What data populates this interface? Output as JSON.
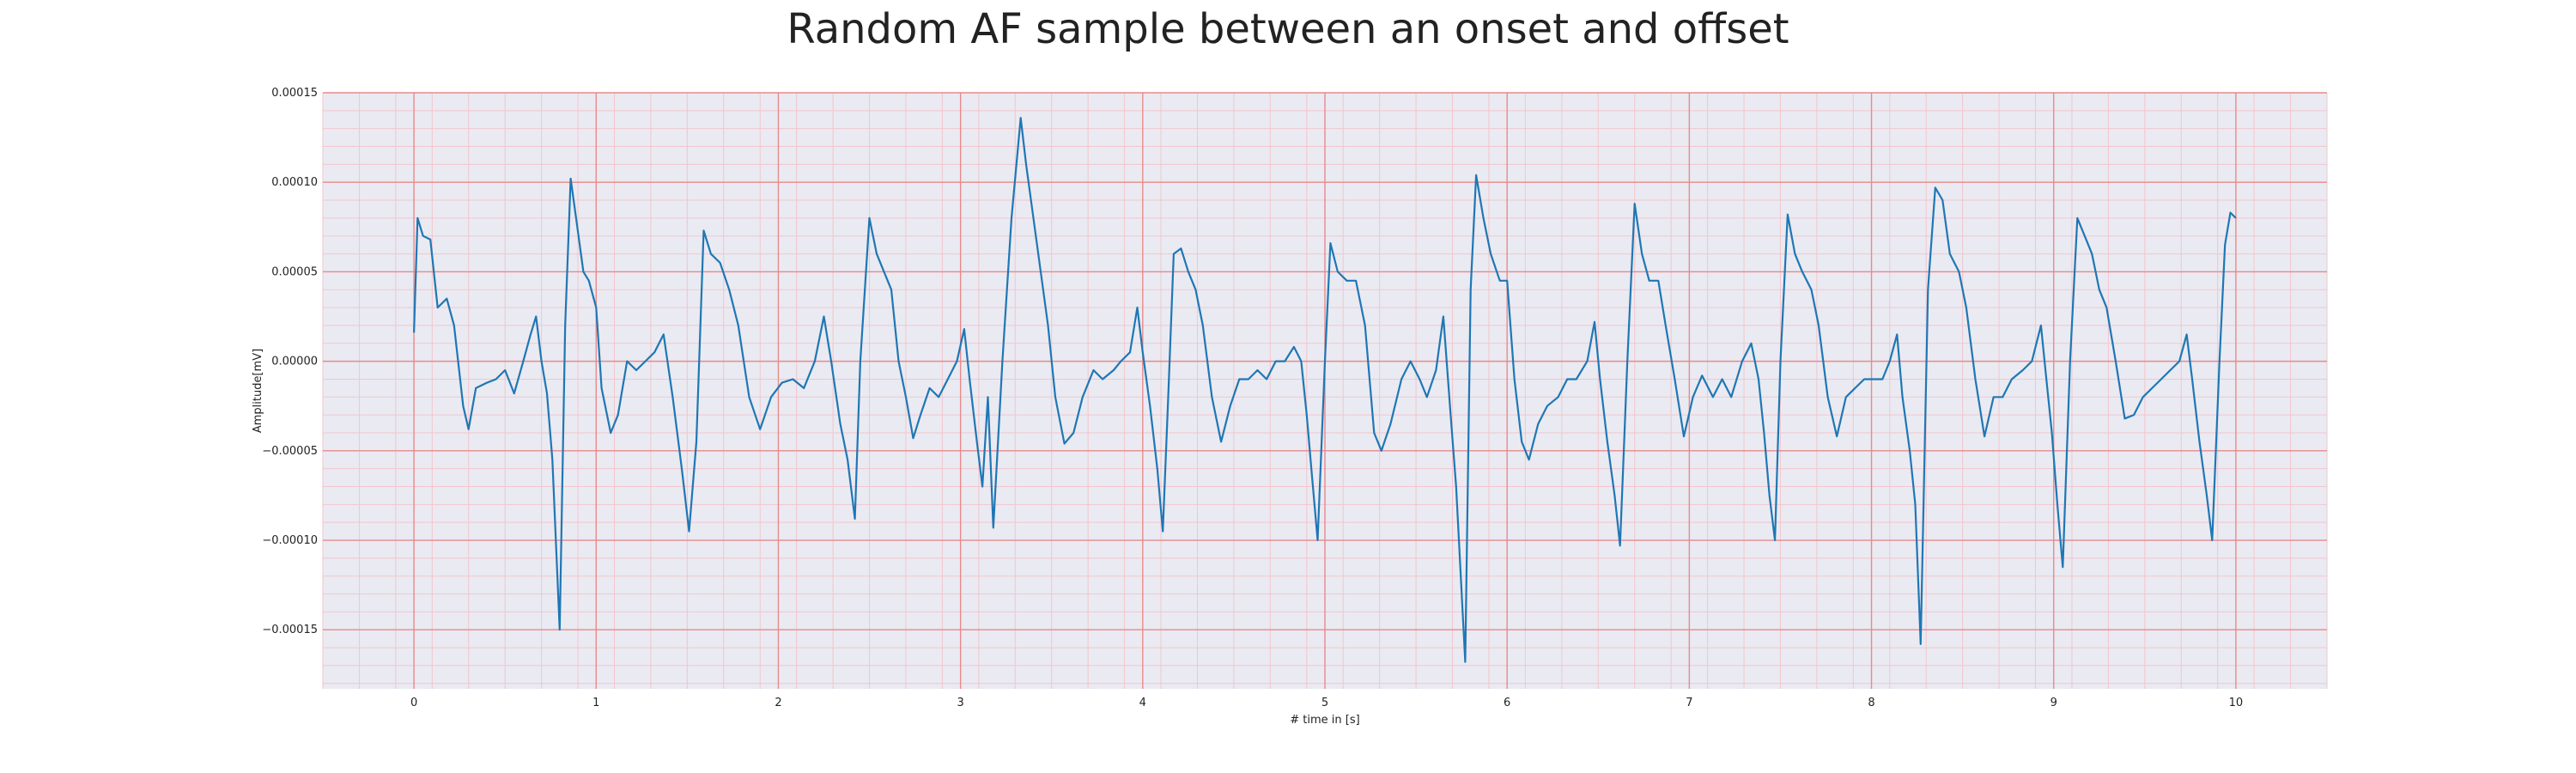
{
  "chart_data": {
    "type": "line",
    "title": "Random AF sample between an onset and offset",
    "xlabel": "# time in [s]",
    "ylabel": "Amplitude[mV]",
    "xlim": [
      -0.5,
      10.5
    ],
    "ylim": [
      -0.000183,
      0.00015
    ],
    "x_ticks": [
      0,
      1,
      2,
      3,
      4,
      5,
      6,
      7,
      8,
      9,
      10
    ],
    "x_tick_labels": [
      "0",
      "1",
      "2",
      "3",
      "4",
      "5",
      "6",
      "7",
      "8",
      "9",
      "10"
    ],
    "y_ticks": [
      -0.00015,
      -0.0001,
      -5e-05,
      0,
      5e-05,
      0.0001,
      0.00015
    ],
    "y_tick_labels": [
      "−0.00015",
      "−0.00010",
      "−0.00005",
      "0.00000",
      "0.00005",
      "0.00010",
      "0.00015"
    ],
    "grid": true,
    "colors": {
      "line": "#1f77b4",
      "major_grid": "#e88a8a",
      "minor_grid": "#f2c6cc",
      "plot_bg": "#eaeaf2"
    },
    "series": [
      {
        "values": [
          [
            0.0,
            1.6e-05
          ],
          [
            0.02,
            8e-05
          ],
          [
            0.05,
            7e-05
          ],
          [
            0.09,
            6.8e-05
          ],
          [
            0.13,
            3e-05
          ],
          [
            0.18,
            3.5e-05
          ],
          [
            0.22,
            2e-05
          ],
          [
            0.27,
            -2.5e-05
          ],
          [
            0.3,
            -3.8e-05
          ],
          [
            0.34,
            -1.5e-05
          ],
          [
            0.4,
            -1.2e-05
          ],
          [
            0.45,
            -1e-05
          ],
          [
            0.5,
            -5e-06
          ],
          [
            0.55,
            -1.8e-05
          ],
          [
            0.6,
            0.0
          ],
          [
            0.64,
            1.5e-05
          ],
          [
            0.67,
            2.5e-05
          ],
          [
            0.7,
            0.0
          ],
          [
            0.73,
            -1.8e-05
          ],
          [
            0.76,
            -5.5e-05
          ],
          [
            0.8,
            -0.00015
          ],
          [
            0.83,
            2e-05
          ],
          [
            0.86,
            0.000102
          ],
          [
            0.89,
            8e-05
          ],
          [
            0.93,
            5e-05
          ],
          [
            0.96,
            4.5e-05
          ],
          [
            1.0,
            3e-05
          ],
          [
            1.03,
            -1.5e-05
          ],
          [
            1.08,
            -4e-05
          ],
          [
            1.12,
            -3e-05
          ],
          [
            1.17,
            0.0
          ],
          [
            1.22,
            -5e-06
          ],
          [
            1.27,
            0.0
          ],
          [
            1.32,
            5e-06
          ],
          [
            1.37,
            1.5e-05
          ],
          [
            1.42,
            -2e-05
          ],
          [
            1.47,
            -6e-05
          ],
          [
            1.51,
            -9.5e-05
          ],
          [
            1.55,
            -4.5e-05
          ],
          [
            1.59,
            7.3e-05
          ],
          [
            1.63,
            6e-05
          ],
          [
            1.68,
            5.5e-05
          ],
          [
            1.73,
            4e-05
          ],
          [
            1.78,
            2e-05
          ],
          [
            1.84,
            -2e-05
          ],
          [
            1.9,
            -3.8e-05
          ],
          [
            1.96,
            -2e-05
          ],
          [
            2.02,
            -1.2e-05
          ],
          [
            2.08,
            -1e-05
          ],
          [
            2.14,
            -1.5e-05
          ],
          [
            2.2,
            0.0
          ],
          [
            2.25,
            2.5e-05
          ],
          [
            2.29,
            0.0
          ],
          [
            2.34,
            -3.5e-05
          ],
          [
            2.38,
            -5.5e-05
          ],
          [
            2.42,
            -8.8e-05
          ],
          [
            2.45,
            0.0
          ],
          [
            2.5,
            8e-05
          ],
          [
            2.54,
            6e-05
          ],
          [
            2.58,
            5e-05
          ],
          [
            2.62,
            4e-05
          ],
          [
            2.66,
            0.0
          ],
          [
            2.7,
            -2e-05
          ],
          [
            2.74,
            -4.3e-05
          ],
          [
            2.78,
            -3e-05
          ],
          [
            2.83,
            -1.5e-05
          ],
          [
            2.88,
            -2e-05
          ],
          [
            2.93,
            -1e-05
          ],
          [
            2.98,
            0.0
          ],
          [
            3.02,
            1.8e-05
          ],
          [
            3.05,
            -1e-05
          ],
          [
            3.09,
            -4.5e-05
          ],
          [
            3.12,
            -7e-05
          ],
          [
            3.15,
            -2e-05
          ],
          [
            3.18,
            -9.3e-05
          ],
          [
            3.23,
            0.0
          ],
          [
            3.28,
            8e-05
          ],
          [
            3.33,
            0.000136
          ],
          [
            3.36,
            0.00011
          ],
          [
            3.4,
            8e-05
          ],
          [
            3.44,
            5e-05
          ],
          [
            3.48,
            2e-05
          ],
          [
            3.52,
            -2e-05
          ],
          [
            3.57,
            -4.6e-05
          ],
          [
            3.62,
            -4e-05
          ],
          [
            3.67,
            -2e-05
          ],
          [
            3.73,
            -5e-06
          ],
          [
            3.78,
            -1e-05
          ],
          [
            3.84,
            -5e-06
          ],
          [
            3.88,
            0.0
          ],
          [
            3.93,
            5e-06
          ],
          [
            3.97,
            3e-05
          ],
          [
            4.0,
            5e-06
          ],
          [
            4.04,
            -2.5e-05
          ],
          [
            4.08,
            -6e-05
          ],
          [
            4.11,
            -9.5e-05
          ],
          [
            4.14,
            -2e-05
          ],
          [
            4.17,
            6e-05
          ],
          [
            4.21,
            6.3e-05
          ],
          [
            4.25,
            5e-05
          ],
          [
            4.29,
            4e-05
          ],
          [
            4.33,
            2e-05
          ],
          [
            4.38,
            -2e-05
          ],
          [
            4.43,
            -4.5e-05
          ],
          [
            4.48,
            -2.5e-05
          ],
          [
            4.53,
            -1e-05
          ],
          [
            4.58,
            -1e-05
          ],
          [
            4.63,
            -5e-06
          ],
          [
            4.68,
            -1e-05
          ],
          [
            4.73,
            0.0
          ],
          [
            4.78,
            0.0
          ],
          [
            4.83,
            8e-06
          ],
          [
            4.87,
            0.0
          ],
          [
            4.9,
            -3e-05
          ],
          [
            4.93,
            -6.5e-05
          ],
          [
            4.96,
            -0.0001
          ],
          [
            5.0,
            0.0
          ],
          [
            5.03,
            6.6e-05
          ],
          [
            5.07,
            5e-05
          ],
          [
            5.12,
            4.5e-05
          ],
          [
            5.17,
            4.5e-05
          ],
          [
            5.22,
            2e-05
          ],
          [
            5.27,
            -4e-05
          ],
          [
            5.31,
            -5e-05
          ],
          [
            5.36,
            -3.5e-05
          ],
          [
            5.42,
            -1e-05
          ],
          [
            5.47,
            0.0
          ],
          [
            5.52,
            -1e-05
          ],
          [
            5.56,
            -2e-05
          ],
          [
            5.61,
            -5e-06
          ],
          [
            5.65,
            2.5e-05
          ],
          [
            5.69,
            -3e-05
          ],
          [
            5.72,
            -7e-05
          ],
          [
            5.77,
            -0.000168
          ],
          [
            5.8,
            4e-05
          ],
          [
            5.83,
            0.000104
          ],
          [
            5.87,
            8e-05
          ],
          [
            5.91,
            6e-05
          ],
          [
            5.96,
            4.5e-05
          ],
          [
            6.0,
            4.5e-05
          ],
          [
            6.04,
            -1e-05
          ],
          [
            6.08,
            -4.5e-05
          ],
          [
            6.12,
            -5.5e-05
          ],
          [
            6.17,
            -3.5e-05
          ],
          [
            6.22,
            -2.5e-05
          ],
          [
            6.28,
            -2e-05
          ],
          [
            6.33,
            -1e-05
          ],
          [
            6.38,
            -1e-05
          ],
          [
            6.44,
            0.0
          ],
          [
            6.48,
            2.2e-05
          ],
          [
            6.51,
            -1e-05
          ],
          [
            6.55,
            -4.5e-05
          ],
          [
            6.59,
            -7.5e-05
          ],
          [
            6.62,
            -0.000103
          ],
          [
            6.66,
            0.0
          ],
          [
            6.7,
            8.8e-05
          ],
          [
            6.74,
            6e-05
          ],
          [
            6.78,
            4.5e-05
          ],
          [
            6.83,
            4.5e-05
          ],
          [
            6.87,
            2e-05
          ],
          [
            6.92,
            -1e-05
          ],
          [
            6.97,
            -4.2e-05
          ],
          [
            7.02,
            -2e-05
          ],
          [
            7.07,
            -8e-06
          ],
          [
            7.13,
            -2e-05
          ],
          [
            7.18,
            -1e-05
          ],
          [
            7.23,
            -2e-05
          ],
          [
            7.29,
            0.0
          ],
          [
            7.34,
            1e-05
          ],
          [
            7.38,
            -1e-05
          ],
          [
            7.41,
            -4e-05
          ],
          [
            7.44,
            -7.5e-05
          ],
          [
            7.47,
            -0.0001
          ],
          [
            7.5,
            0.0
          ],
          [
            7.54,
            8.2e-05
          ],
          [
            7.58,
            6e-05
          ],
          [
            7.62,
            5e-05
          ],
          [
            7.67,
            4e-05
          ],
          [
            7.71,
            2e-05
          ],
          [
            7.76,
            -2e-05
          ],
          [
            7.81,
            -4.2e-05
          ],
          [
            7.86,
            -2e-05
          ],
          [
            7.91,
            -1.5e-05
          ],
          [
            7.96,
            -1e-05
          ],
          [
            8.01,
            -1e-05
          ],
          [
            8.06,
            -1e-05
          ],
          [
            8.1,
            0.0
          ],
          [
            8.14,
            1.5e-05
          ],
          [
            8.17,
            -2e-05
          ],
          [
            8.21,
            -5e-05
          ],
          [
            8.24,
            -8e-05
          ],
          [
            8.27,
            -0.000158
          ],
          [
            8.31,
            4e-05
          ],
          [
            8.35,
            9.7e-05
          ],
          [
            8.39,
            9e-05
          ],
          [
            8.43,
            6e-05
          ],
          [
            8.48,
            5e-05
          ],
          [
            8.52,
            3e-05
          ],
          [
            8.57,
            -1e-05
          ],
          [
            8.62,
            -4.2e-05
          ],
          [
            8.67,
            -2e-05
          ],
          [
            8.72,
            -2e-05
          ],
          [
            8.77,
            -1e-05
          ],
          [
            8.83,
            -5e-06
          ],
          [
            8.88,
            0.0
          ],
          [
            8.93,
            2e-05
          ],
          [
            8.96,
            -1e-05
          ],
          [
            8.99,
            -4e-05
          ],
          [
            9.02,
            -8e-05
          ],
          [
            9.05,
            -0.000115
          ],
          [
            9.09,
            0.0
          ],
          [
            9.13,
            8e-05
          ],
          [
            9.17,
            7e-05
          ],
          [
            9.21,
            6e-05
          ],
          [
            9.25,
            4e-05
          ],
          [
            9.29,
            3e-05
          ],
          [
            9.34,
            0.0
          ],
          [
            9.39,
            -3.2e-05
          ],
          [
            9.44,
            -3e-05
          ],
          [
            9.49,
            -2e-05
          ],
          [
            9.54,
            -1.5e-05
          ],
          [
            9.59,
            -1e-05
          ],
          [
            9.64,
            -5e-06
          ],
          [
            9.69,
            0.0
          ],
          [
            9.73,
            1.5e-05
          ],
          [
            9.76,
            -1e-05
          ],
          [
            9.8,
            -4.5e-05
          ],
          [
            9.84,
            -7.5e-05
          ],
          [
            9.87,
            -0.0001
          ],
          [
            9.91,
            0.0
          ],
          [
            9.94,
            6.5e-05
          ],
          [
            9.97,
            8.3e-05
          ],
          [
            10.0,
            8e-05
          ]
        ]
      }
    ]
  }
}
